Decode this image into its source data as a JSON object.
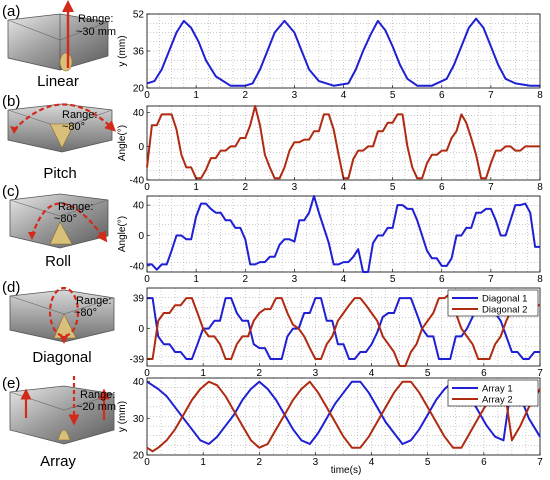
{
  "colors": {
    "blue": "#1f1fd4",
    "red": "#b02a12",
    "arrow": "#d42a1a",
    "grid": "#9a9a9a"
  },
  "panels": [
    {
      "letter": "(a)",
      "name": "Linear",
      "range_lines": [
        "Range:",
        "~30 mm"
      ]
    },
    {
      "letter": "(b)",
      "name": "Pitch",
      "range_lines": [
        "Range:",
        "~80°"
      ]
    },
    {
      "letter": "(c)",
      "name": "Roll",
      "range_lines": [
        "Range:",
        "~80°"
      ]
    },
    {
      "letter": "(d)",
      "name": "Diagonal",
      "range_lines": [
        "Range:",
        "~80°"
      ]
    },
    {
      "letter": "(e)",
      "name": "Array",
      "range_lines": [
        "Range:",
        "~20 mm"
      ]
    }
  ],
  "xlabel": "time(s)",
  "chart_data": [
    {
      "type": "line",
      "ylabel": "y (mm)",
      "xlim": [
        0,
        8
      ],
      "ylim": [
        20,
        52
      ],
      "xticks": [
        0,
        1,
        2,
        3,
        4,
        5,
        6,
        7,
        8
      ],
      "yticks": [
        20,
        36,
        52
      ],
      "grid": true,
      "series": [
        {
          "color": "blue",
          "x": [
            0,
            0.15,
            0.3,
            0.45,
            0.6,
            0.75,
            0.9,
            1.05,
            1.2,
            1.4,
            1.7,
            2.0,
            2.15,
            2.3,
            2.45,
            2.6,
            2.8,
            3.0,
            3.15,
            3.3,
            3.5,
            3.8,
            4.1,
            4.25,
            4.4,
            4.55,
            4.7,
            4.85,
            5.0,
            5.15,
            5.3,
            5.5,
            5.8,
            6.1,
            6.25,
            6.4,
            6.55,
            6.7,
            6.85,
            7.0,
            7.15,
            7.3,
            7.5,
            7.8,
            8.0
          ],
          "y": [
            22,
            23,
            28,
            36,
            44,
            49,
            46,
            40,
            32,
            25,
            21,
            21,
            22,
            28,
            36,
            44,
            49,
            44,
            36,
            28,
            23,
            21,
            22,
            28,
            36,
            43,
            49,
            45,
            38,
            30,
            24,
            21,
            21,
            24,
            30,
            38,
            46,
            50,
            46,
            38,
            30,
            24,
            22,
            21,
            21
          ]
        }
      ]
    },
    {
      "type": "line",
      "ylabel": "Angle(°)",
      "xlim": [
        0,
        8
      ],
      "ylim": [
        -40,
        48
      ],
      "xticks": [
        0,
        1,
        2,
        3,
        4,
        5,
        6,
        7,
        8
      ],
      "yticks": [
        -40,
        0,
        40
      ],
      "grid": true,
      "series": [
        {
          "color": "red",
          "x": [
            0,
            0.1,
            0.2,
            0.3,
            0.4,
            0.5,
            0.6,
            0.7,
            0.8,
            0.9,
            1.0,
            1.1,
            1.2,
            1.3,
            1.4,
            1.5,
            1.6,
            1.7,
            1.8,
            1.9,
            2.0,
            2.1,
            2.2,
            2.3,
            2.4,
            2.5,
            2.6,
            2.7,
            2.8,
            2.9,
            3.0,
            3.1,
            3.2,
            3.3,
            3.4,
            3.5,
            3.6,
            3.7,
            3.8,
            3.9,
            4.0,
            4.1,
            4.2,
            4.3,
            4.4,
            4.5,
            4.6,
            4.7,
            4.8,
            4.9,
            5.0,
            5.1,
            5.2,
            5.3,
            5.4,
            5.5,
            5.6,
            5.7,
            5.8,
            5.9,
            6.0,
            6.1,
            6.2,
            6.3,
            6.4,
            6.5,
            6.6,
            6.7,
            6.8,
            6.9,
            7.0,
            7.1,
            7.2,
            7.3,
            7.4,
            7.5,
            7.6,
            7.7,
            7.8,
            7.9,
            8.0
          ],
          "y": [
            -25,
            25,
            25,
            38,
            38,
            38,
            20,
            -10,
            -25,
            -25,
            -38,
            -38,
            -28,
            -14,
            -14,
            -5,
            -5,
            0,
            0,
            10,
            10,
            25,
            48,
            25,
            -10,
            -25,
            -38,
            -38,
            -25,
            -5,
            5,
            5,
            8,
            8,
            18,
            18,
            38,
            38,
            20,
            -10,
            -38,
            -38,
            -15,
            -5,
            -5,
            0,
            0,
            18,
            18,
            28,
            28,
            38,
            38,
            0,
            -25,
            -38,
            -38,
            -20,
            -10,
            -10,
            -5,
            -5,
            10,
            18,
            38,
            28,
            10,
            -10,
            -38,
            -38,
            -20,
            -5,
            -5,
            0,
            0,
            -5,
            -5,
            0,
            0,
            0,
            0
          ]
        }
      ]
    },
    {
      "type": "line",
      "ylabel": "Angle(°)",
      "xlim": [
        0,
        8
      ],
      "ylim": [
        -48,
        52
      ],
      "xticks": [
        0,
        1,
        2,
        3,
        4,
        5,
        6,
        7,
        8
      ],
      "yticks": [
        -40,
        0,
        40
      ],
      "grid": true,
      "series": [
        {
          "color": "blue",
          "x": [
            0,
            0.1,
            0.2,
            0.3,
            0.4,
            0.5,
            0.6,
            0.7,
            0.8,
            0.9,
            1.0,
            1.1,
            1.2,
            1.3,
            1.4,
            1.5,
            1.6,
            1.7,
            1.8,
            1.9,
            2.0,
            2.1,
            2.2,
            2.3,
            2.4,
            2.5,
            2.6,
            2.7,
            2.8,
            2.9,
            3.0,
            3.1,
            3.2,
            3.3,
            3.4,
            3.5,
            3.6,
            3.7,
            3.8,
            3.9,
            4.0,
            4.1,
            4.2,
            4.3,
            4.4,
            4.5,
            4.6,
            4.7,
            4.8,
            4.9,
            5.0,
            5.1,
            5.2,
            5.3,
            5.4,
            5.5,
            5.6,
            5.7,
            5.8,
            5.9,
            6.0,
            6.1,
            6.2,
            6.3,
            6.4,
            6.5,
            6.6,
            6.7,
            6.8,
            6.9,
            7.0,
            7.1,
            7.2,
            7.3,
            7.4,
            7.5,
            7.6,
            7.7,
            7.8,
            7.9,
            8.0
          ],
          "y": [
            -38,
            -38,
            -45,
            -38,
            -38,
            -20,
            0,
            0,
            -5,
            -5,
            25,
            42,
            42,
            35,
            30,
            30,
            20,
            20,
            10,
            10,
            -5,
            -38,
            -38,
            -35,
            -35,
            -28,
            -28,
            -12,
            -5,
            -5,
            -8,
            20,
            20,
            30,
            52,
            30,
            10,
            -10,
            -38,
            -38,
            -35,
            -35,
            -28,
            -18,
            -48,
            -48,
            -10,
            0,
            0,
            10,
            10,
            40,
            40,
            35,
            35,
            20,
            0,
            -20,
            -30,
            -30,
            -40,
            -40,
            -30,
            0,
            0,
            10,
            10,
            30,
            30,
            35,
            35,
            20,
            0,
            0,
            20,
            40,
            40,
            42,
            30,
            -15,
            -15
          ]
        }
      ]
    },
    {
      "type": "line",
      "ylabel": "",
      "xlim": [
        0,
        7
      ],
      "ylim": [
        -48,
        52
      ],
      "xticks": [
        0,
        1,
        2,
        3,
        4,
        5,
        6,
        7
      ],
      "yticks": [
        -39,
        0,
        39
      ],
      "grid": true,
      "legend": "top-right",
      "series": [
        {
          "name": "Diagonal 1",
          "color": "blue",
          "x": [
            0,
            0.1,
            0.2,
            0.3,
            0.4,
            0.5,
            0.6,
            0.7,
            0.8,
            0.9,
            1.0,
            1.1,
            1.2,
            1.3,
            1.4,
            1.5,
            1.6,
            1.7,
            1.8,
            1.9,
            2.0,
            2.1,
            2.2,
            2.3,
            2.4,
            2.5,
            2.6,
            2.7,
            2.8,
            2.9,
            3.0,
            3.1,
            3.2,
            3.3,
            3.4,
            3.5,
            3.6,
            3.7,
            3.8,
            3.9,
            4.0,
            4.1,
            4.2,
            4.3,
            4.4,
            4.5,
            4.6,
            4.7,
            4.8,
            4.9,
            5.0,
            5.1,
            5.2,
            5.3,
            5.4,
            5.5,
            5.6,
            5.7,
            5.8,
            5.9,
            6.0,
            6.1,
            6.2,
            6.3,
            6.4,
            6.5,
            6.6,
            6.7,
            6.8,
            6.9,
            7.0
          ],
          "y": [
            39,
            39,
            -10,
            -20,
            -20,
            -30,
            -30,
            -39,
            -39,
            -20,
            0,
            0,
            10,
            10,
            39,
            39,
            20,
            10,
            10,
            -20,
            -25,
            -25,
            -39,
            -39,
            -39,
            -10,
            0,
            0,
            20,
            20,
            39,
            39,
            10,
            10,
            -20,
            -20,
            -39,
            -39,
            -30,
            -30,
            -20,
            -5,
            15,
            20,
            20,
            39,
            39,
            39,
            20,
            0,
            -10,
            -10,
            -39,
            -39,
            -39,
            -10,
            -10,
            0,
            15,
            39,
            39,
            39,
            20,
            10,
            -10,
            -30,
            -30,
            -39,
            -39,
            -30,
            -30
          ]
        },
        {
          "name": "Diagonal 2",
          "color": "red",
          "x": [
            0,
            0.1,
            0.2,
            0.3,
            0.4,
            0.5,
            0.6,
            0.7,
            0.8,
            0.9,
            1.0,
            1.1,
            1.2,
            1.3,
            1.4,
            1.5,
            1.6,
            1.7,
            1.8,
            1.9,
            2.0,
            2.1,
            2.2,
            2.3,
            2.4,
            2.5,
            2.6,
            2.7,
            2.8,
            2.9,
            3.0,
            3.1,
            3.2,
            3.3,
            3.4,
            3.5,
            3.6,
            3.7,
            3.8,
            3.9,
            4.0,
            4.1,
            4.2,
            4.3,
            4.4,
            4.5,
            4.6,
            4.7,
            4.8,
            4.9,
            5.0,
            5.1,
            5.2,
            5.3,
            5.4,
            5.5,
            5.6,
            5.7,
            5.8,
            5.9,
            6.0,
            6.1,
            6.2,
            6.3,
            6.4,
            6.5,
            6.6,
            6.7,
            6.8,
            6.9,
            7.0
          ],
          "y": [
            -39,
            -39,
            10,
            20,
            20,
            30,
            30,
            39,
            39,
            20,
            0,
            -10,
            -10,
            -20,
            -39,
            -39,
            -20,
            -10,
            -10,
            10,
            20,
            25,
            25,
            39,
            39,
            20,
            5,
            0,
            -10,
            -25,
            -39,
            -39,
            -20,
            -10,
            10,
            20,
            30,
            39,
            39,
            30,
            20,
            10,
            -10,
            -20,
            -30,
            -48,
            -48,
            -30,
            -20,
            0,
            10,
            20,
            39,
            39,
            45,
            20,
            0,
            -10,
            -20,
            -39,
            -39,
            -39,
            -20,
            -10,
            10,
            25,
            30,
            39,
            39,
            30,
            30
          ]
        }
      ]
    },
    {
      "type": "line",
      "ylabel": "y (mm)",
      "xlim": [
        0,
        7
      ],
      "ylim": [
        20,
        41
      ],
      "xticks": [
        0,
        1,
        2,
        3,
        4,
        5,
        6,
        7
      ],
      "yticks": [
        20,
        30,
        40
      ],
      "grid": true,
      "legend": "top-right",
      "series": [
        {
          "name": "Array 1",
          "color": "blue",
          "x": [
            0,
            0.1,
            0.2,
            0.35,
            0.5,
            0.65,
            0.8,
            0.95,
            1.1,
            1.25,
            1.4,
            1.55,
            1.7,
            1.85,
            2.0,
            2.15,
            2.3,
            2.45,
            2.6,
            2.75,
            2.9,
            3.05,
            3.2,
            3.35,
            3.5,
            3.65,
            3.8,
            3.95,
            4.1,
            4.25,
            4.4,
            4.55,
            4.7,
            4.85,
            5.0,
            5.15,
            5.3,
            5.45,
            5.6,
            5.75,
            5.9,
            6.05,
            6.2,
            6.35,
            6.5,
            6.65,
            6.8,
            7.0
          ],
          "y": [
            40,
            39,
            38,
            36,
            33,
            30,
            27,
            24,
            23,
            25,
            28,
            31,
            35,
            38,
            40,
            38,
            35,
            31,
            27,
            24,
            23,
            26,
            30,
            34,
            37,
            40,
            40,
            37,
            33,
            29,
            26,
            23,
            24,
            27,
            31,
            35,
            38,
            40,
            39,
            36,
            32,
            28,
            25,
            24,
            40,
            36,
            30,
            25
          ]
        },
        {
          "name": "Array 2",
          "color": "red",
          "x": [
            0,
            0.1,
            0.2,
            0.35,
            0.5,
            0.65,
            0.8,
            0.95,
            1.1,
            1.25,
            1.4,
            1.55,
            1.7,
            1.85,
            2.0,
            2.15,
            2.3,
            2.45,
            2.6,
            2.75,
            2.9,
            3.05,
            3.2,
            3.35,
            3.5,
            3.65,
            3.8,
            3.95,
            4.1,
            4.25,
            4.4,
            4.55,
            4.7,
            4.85,
            5.0,
            5.15,
            5.3,
            5.45,
            5.6,
            5.75,
            5.9,
            6.05,
            6.2,
            6.35,
            6.5,
            6.65,
            6.8,
            7.0
          ],
          "y": [
            22,
            21,
            22,
            24,
            27,
            31,
            35,
            38,
            40,
            39,
            36,
            32,
            28,
            24,
            22,
            23,
            27,
            31,
            35,
            38,
            40,
            37,
            33,
            29,
            25,
            22,
            22,
            25,
            29,
            33,
            37,
            40,
            40,
            37,
            33,
            29,
            25,
            22,
            22,
            26,
            30,
            34,
            37,
            40,
            24,
            28,
            33,
            38
          ]
        }
      ]
    }
  ]
}
